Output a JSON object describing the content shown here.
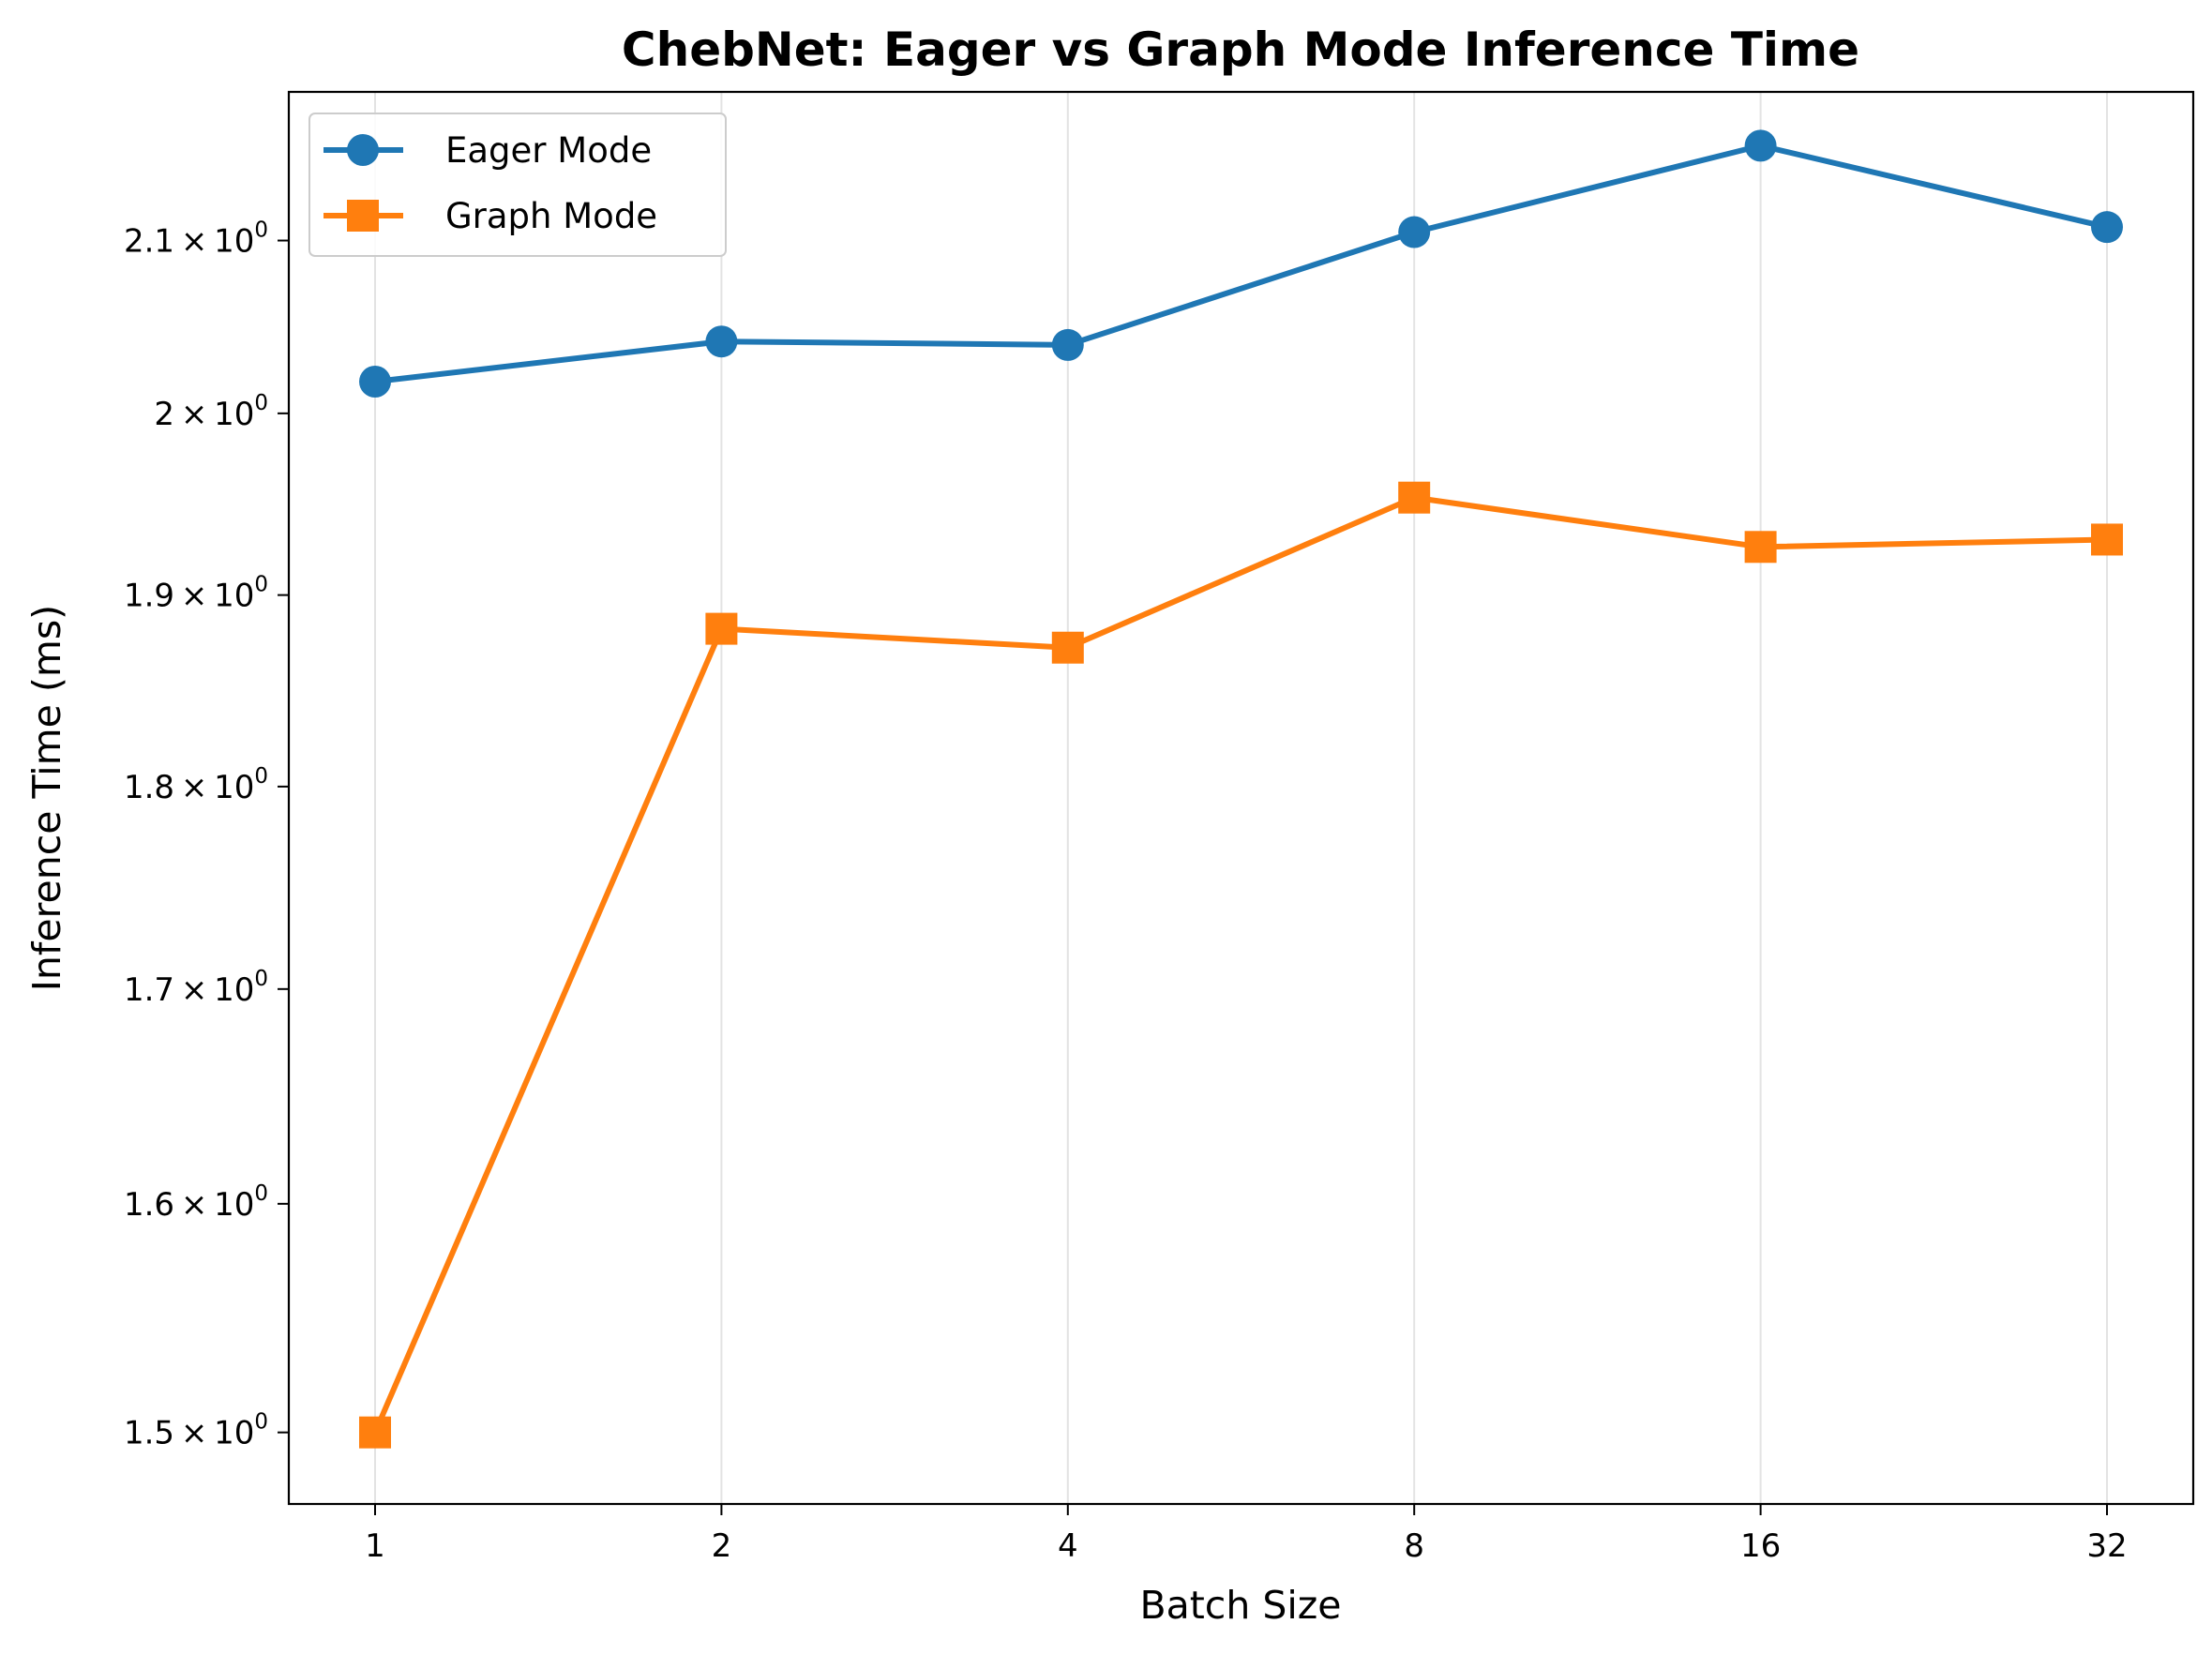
{
  "chart_data": {
    "type": "line",
    "title": "ChebNet: Eager vs Graph Mode Inference Time",
    "xlabel": "Batch Size",
    "ylabel": "Inference Time (ms)",
    "x": [
      1,
      2,
      4,
      8,
      16,
      32
    ],
    "x_tick_labels": [
      "1",
      "2",
      "4",
      "8",
      "16",
      "32"
    ],
    "x_scale": "log2",
    "y_scale": "log",
    "ylim": [
      1.47,
      2.19
    ],
    "y_ticks": [
      {
        "value": 1.5,
        "mantissa": "1.5",
        "exponent": "0"
      },
      {
        "value": 1.6,
        "mantissa": "1.6",
        "exponent": "0"
      },
      {
        "value": 1.7,
        "mantissa": "1.7",
        "exponent": "0"
      },
      {
        "value": 1.8,
        "mantissa": "1.8",
        "exponent": "0"
      },
      {
        "value": 1.9,
        "mantissa": "1.9",
        "exponent": "0"
      },
      {
        "value": 2.0,
        "mantissa": "2",
        "exponent": "0"
      },
      {
        "value": 2.1,
        "mantissa": "2.1",
        "exponent": "0"
      }
    ],
    "grid": "x-only",
    "legend": "top-left",
    "series": [
      {
        "name": "Eager Mode",
        "marker": "circle",
        "color": "#1f77b4",
        "values": [
          2.018,
          2.041,
          2.039,
          2.105,
          2.157,
          2.108
        ]
      },
      {
        "name": "Graph Mode",
        "marker": "square",
        "color": "#ff7f0e",
        "values": [
          1.5,
          1.882,
          1.872,
          1.953,
          1.926,
          1.93
        ]
      }
    ]
  }
}
